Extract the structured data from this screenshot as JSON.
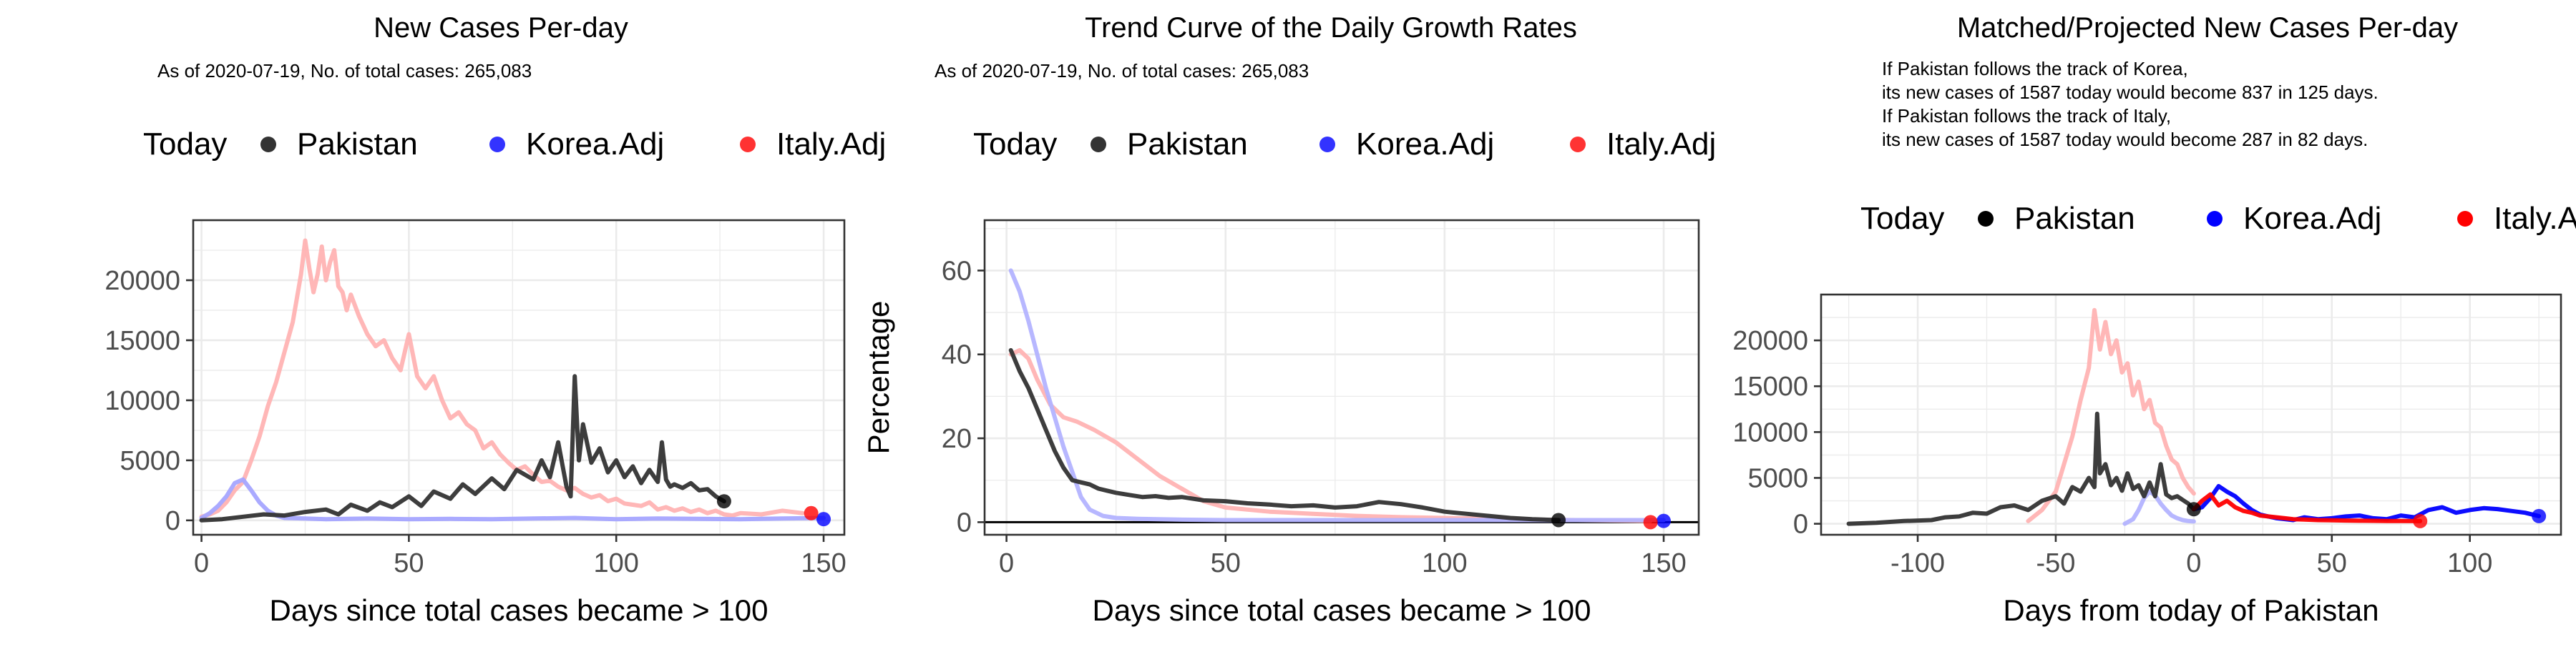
{
  "chart_data": [
    {
      "type": "line",
      "title": "New Cases Per-day",
      "subtitle": "As of 2020-07-19, No. of total cases: 265,083",
      "xlabel": "Days since total cases became > 100",
      "ylabel": "",
      "xlim": [
        -2,
        155
      ],
      "ylim": [
        -1200,
        25000
      ],
      "xticks": [
        0,
        50,
        100,
        150
      ],
      "yticks": [
        0,
        5000,
        10000,
        15000,
        20000
      ],
      "grid": true,
      "legend_position": "top",
      "legend": {
        "title": "Today",
        "entries": [
          "Pakistan",
          "Korea.Adj",
          "Italy.Adj"
        ]
      },
      "series": [
        {
          "name": "Italy.Adj",
          "color": "#ffb3b3",
          "x": [
            0,
            2,
            4,
            6,
            8,
            10,
            12,
            14,
            16,
            18,
            20,
            22,
            24,
            25,
            26,
            27,
            28,
            29,
            30,
            31,
            32,
            33,
            34,
            35,
            36,
            38,
            40,
            42,
            44,
            46,
            48,
            50,
            52,
            54,
            56,
            58,
            60,
            62,
            64,
            66,
            68,
            70,
            72,
            74,
            76,
            78,
            80,
            82,
            84,
            86,
            88,
            90,
            92,
            94,
            96,
            98,
            100,
            102,
            104,
            106,
            108,
            110,
            112,
            114,
            116,
            118,
            120,
            122,
            124,
            126,
            128,
            130,
            135,
            140,
            145
          ],
          "y": [
            300,
            500,
            800,
            1500,
            2500,
            3200,
            5000,
            7000,
            9500,
            11500,
            14000,
            16500,
            20500,
            23300,
            21000,
            19000,
            20500,
            22800,
            20000,
            21500,
            22500,
            19500,
            19000,
            17500,
            18800,
            17000,
            15500,
            14500,
            15000,
            13500,
            12500,
            15500,
            12000,
            11000,
            12000,
            10000,
            8500,
            9000,
            8000,
            7500,
            6000,
            6500,
            5500,
            4800,
            4200,
            4500,
            3800,
            3200,
            3300,
            2800,
            2500,
            2700,
            2200,
            1900,
            2100,
            1600,
            1800,
            1400,
            1300,
            1200,
            1500,
            900,
            1100,
            800,
            1000,
            700,
            900,
            600,
            800,
            500,
            400,
            600,
            500,
            800,
            600
          ]
        },
        {
          "name": "Korea.Adj",
          "color": "#a5a5ff",
          "x": [
            0,
            2,
            4,
            6,
            8,
            10,
            12,
            14,
            16,
            18,
            20,
            25,
            30,
            35,
            40,
            50,
            60,
            70,
            80,
            90,
            100,
            110,
            120,
            130,
            140,
            150
          ],
          "y": [
            200,
            600,
            1200,
            2000,
            3100,
            3400,
            2500,
            1500,
            800,
            400,
            200,
            150,
            100,
            120,
            150,
            100,
            120,
            100,
            150,
            200,
            100,
            150,
            120,
            100,
            150,
            200
          ]
        },
        {
          "name": "Pakistan",
          "color": "#333333",
          "x": [
            0,
            5,
            10,
            15,
            20,
            25,
            30,
            33,
            36,
            40,
            43,
            46,
            50,
            53,
            56,
            60,
            63,
            66,
            70,
            73,
            76,
            80,
            82,
            84,
            86,
            88,
            89,
            90,
            91,
            92,
            94,
            96,
            98,
            100,
            102,
            104,
            106,
            108,
            110,
            111,
            112,
            113,
            114,
            116,
            118,
            120,
            122,
            124,
            126
          ],
          "y": [
            0,
            100,
            300,
            500,
            400,
            700,
            900,
            500,
            1300,
            800,
            1500,
            1100,
            2000,
            1200,
            2400,
            1800,
            3000,
            2200,
            3500,
            2600,
            4200,
            3400,
            5000,
            3600,
            6500,
            2800,
            2000,
            12000,
            5000,
            8000,
            4800,
            6000,
            4000,
            5000,
            3600,
            4500,
            3100,
            4200,
            3200,
            6500,
            3400,
            2800,
            3000,
            2700,
            3100,
            2500,
            2600,
            2000,
            1587
          ]
        }
      ],
      "today_points": [
        {
          "name": "Pakistan",
          "x": 126,
          "y": 1587,
          "color": "#000000"
        },
        {
          "name": "Korea.Adj",
          "x": 150,
          "y": 100,
          "color": "#0000ff"
        },
        {
          "name": "Italy.Adj",
          "x": 147,
          "y": 600,
          "color": "#ff0000"
        }
      ]
    },
    {
      "type": "line",
      "title": "Trend Curve of the Daily Growth Rates",
      "subtitle": "As of 2020-07-19, No. of total cases: 265,083",
      "xlabel": "Days since total cases became > 100",
      "ylabel": "Percentage",
      "xlim": [
        -5,
        158
      ],
      "ylim": [
        -3,
        72
      ],
      "xticks": [
        0,
        50,
        100,
        150
      ],
      "yticks": [
        0,
        20,
        40,
        60
      ],
      "grid": true,
      "hline": 0,
      "legend_position": "top",
      "legend": {
        "title": "Today",
        "entries": [
          "Pakistan",
          "Korea.Adj",
          "Italy.Adj"
        ]
      },
      "series": [
        {
          "name": "Italy.Adj",
          "color": "#ffb3b3",
          "x": [
            1,
            3,
            5,
            7,
            10,
            13,
            16,
            20,
            25,
            30,
            35,
            40,
            45,
            50,
            60,
            70,
            80,
            90,
            100,
            110,
            120,
            130,
            140,
            147
          ],
          "y": [
            40,
            41,
            39,
            34,
            28,
            25,
            24,
            22,
            19,
            15,
            11,
            8,
            5,
            3.5,
            2.5,
            2,
            1.5,
            1.2,
            1,
            0.8,
            0.6,
            0.5,
            0.4,
            0.3
          ]
        },
        {
          "name": "Korea.Adj",
          "color": "#b3b3ff",
          "x": [
            1,
            3,
            5,
            7,
            9,
            11,
            13,
            15,
            17,
            19,
            22,
            25,
            30,
            40,
            50,
            70,
            100,
            130,
            150
          ],
          "y": [
            60,
            55,
            48,
            40,
            32,
            25,
            18,
            12,
            6,
            3,
            1.5,
            1,
            0.8,
            0.6,
            0.5,
            0.5,
            0.5,
            0.5,
            0.5
          ]
        },
        {
          "name": "Pakistan",
          "color": "#333333",
          "x": [
            1,
            3,
            5,
            7,
            9,
            11,
            13,
            15,
            17,
            19,
            21,
            23,
            25,
            28,
            31,
            34,
            37,
            40,
            45,
            50,
            55,
            60,
            65,
            70,
            75,
            80,
            85,
            90,
            95,
            100,
            105,
            110,
            115,
            120,
            126
          ],
          "y": [
            41,
            36,
            32,
            27,
            22,
            17,
            13,
            10,
            9.5,
            9,
            8,
            7.5,
            7,
            6.5,
            6,
            6.2,
            5.8,
            6,
            5.2,
            5,
            4.5,
            4.2,
            3.8,
            4,
            3.5,
            3.8,
            4.8,
            4.3,
            3.5,
            2.5,
            2,
            1.5,
            1,
            0.7,
            0.5
          ]
        }
      ],
      "today_points": [
        {
          "name": "Pakistan",
          "x": 126,
          "y": 0.5,
          "color": "#000000"
        },
        {
          "name": "Korea.Adj",
          "x": 150,
          "y": 0.3,
          "color": "#0000ff"
        },
        {
          "name": "Italy.Adj",
          "x": 147,
          "y": 0,
          "color": "#ff0000"
        }
      ]
    },
    {
      "type": "line",
      "title": "Matched/Projected New Cases Per-day",
      "annotation_lines": [
        "If Pakistan follows the track of Korea,",
        "its new cases of 1587 today would become 837 in 125 days.",
        "If Pakistan follows the track of Italy,",
        "its new cases of 1587 today would become 287 in 82 days."
      ],
      "xlabel": "Days from today of Pakistan",
      "ylabel": "",
      "xlim": [
        -135,
        133
      ],
      "ylim": [
        -1200,
        25000
      ],
      "xticks": [
        -100,
        -50,
        0,
        50,
        100
      ],
      "yticks": [
        0,
        5000,
        10000,
        15000,
        20000
      ],
      "grid": true,
      "legend_position": "top",
      "legend": {
        "title": "Today",
        "entries": [
          "Pakistan",
          "Korea.Adj",
          "Italy.Adj"
        ]
      },
      "series": [
        {
          "name": "Italy.Adj (past)",
          "color": "#ffb3b3",
          "x": [
            -60,
            -55,
            -50,
            -47,
            -44,
            -41,
            -38,
            -36,
            -34,
            -32,
            -30,
            -28,
            -26,
            -24,
            -22,
            -20,
            -18,
            -16,
            -14,
            -12,
            -10,
            -8,
            -6,
            -4,
            -2,
            0
          ],
          "y": [
            300,
            1500,
            3500,
            6500,
            9500,
            13500,
            17000,
            23300,
            19000,
            22000,
            18500,
            20000,
            16500,
            17500,
            14000,
            15500,
            12500,
            13500,
            11000,
            10500,
            8500,
            7000,
            6500,
            5000,
            4000,
            3300
          ]
        },
        {
          "name": "Korea.Adj (past)",
          "color": "#b3b3ff",
          "x": [
            -25,
            -22,
            -20,
            -18,
            -16,
            -14,
            -12,
            -10,
            -8,
            -6,
            -4,
            -2,
            0
          ],
          "y": [
            0,
            500,
            1500,
            2800,
            3500,
            3100,
            2200,
            1500,
            900,
            600,
            400,
            300,
            250
          ]
        },
        {
          "name": "Pakistan",
          "color": "#333333",
          "x": [
            -125,
            -115,
            -105,
            -95,
            -90,
            -85,
            -80,
            -75,
            -70,
            -65,
            -60,
            -55,
            -50,
            -47,
            -44,
            -41,
            -38,
            -36,
            -35,
            -34,
            -32,
            -30,
            -28,
            -26,
            -24,
            -22,
            -20,
            -18,
            -16,
            -14,
            -12,
            -10,
            -8,
            -6,
            -4,
            -2,
            0
          ],
          "y": [
            0,
            100,
            300,
            400,
            700,
            800,
            1200,
            1100,
            1800,
            2000,
            1500,
            2500,
            3000,
            2200,
            4000,
            3500,
            5000,
            4000,
            12000,
            5500,
            6500,
            4200,
            5000,
            3600,
            5500,
            3800,
            4200,
            3000,
            4500,
            3000,
            6500,
            3200,
            2800,
            3000,
            2600,
            2200,
            1587
          ]
        },
        {
          "name": "Korea.Adj (projected)",
          "color": "#0000ff",
          "x": [
            0,
            3,
            6,
            9,
            12,
            15,
            18,
            21,
            24,
            27,
            30,
            33,
            36,
            40,
            45,
            50,
            55,
            60,
            65,
            70,
            75,
            80,
            85,
            90,
            95,
            100,
            105,
            110,
            115,
            120,
            125
          ],
          "y": [
            1587,
            1800,
            2800,
            4100,
            3500,
            3000,
            2200,
            1500,
            1000,
            800,
            600,
            500,
            400,
            700,
            500,
            600,
            800,
            900,
            600,
            500,
            900,
            700,
            1500,
            1800,
            1200,
            1500,
            1700,
            1600,
            1400,
            1200,
            837
          ]
        },
        {
          "name": "Italy.Adj (projected)",
          "color": "#ff0000",
          "x": [
            0,
            3,
            6,
            9,
            12,
            15,
            18,
            21,
            24,
            27,
            30,
            33,
            36,
            40,
            45,
            50,
            55,
            60,
            65,
            70,
            75,
            82
          ],
          "y": [
            1587,
            2500,
            3200,
            2000,
            2500,
            1800,
            1400,
            1200,
            900,
            800,
            700,
            600,
            500,
            450,
            400,
            380,
            350,
            330,
            320,
            300,
            295,
            287
          ]
        }
      ],
      "today_points": [
        {
          "name": "Pakistan",
          "x": 0,
          "y": 1587,
          "color": "#000000"
        },
        {
          "name": "Korea.Adj",
          "x": 125,
          "y": 837,
          "color": "#0000ff"
        },
        {
          "name": "Italy.Adj",
          "x": 82,
          "y": 287,
          "color": "#ff0000"
        }
      ]
    }
  ]
}
